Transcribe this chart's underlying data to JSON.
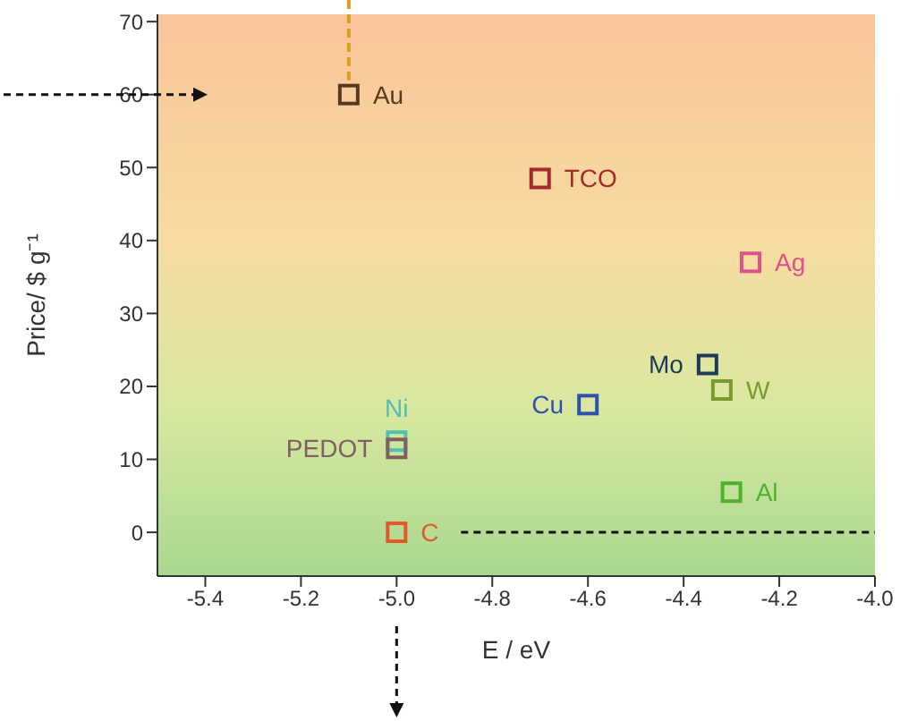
{
  "chart_data": {
    "type": "scatter",
    "xlabel": "E / eV",
    "ylabel": "Price/ $ g⁻¹",
    "xlim": [
      -5.5,
      -4.0
    ],
    "xticks": [
      -5.4,
      -5.2,
      {
        "value": -5.0,
        "label": "-5.0"
      },
      -4.8,
      -4.6,
      -4.4,
      -4.2,
      {
        "value": -4.0,
        "label": "-4.0"
      }
    ],
    "ylim": [
      -6,
      71
    ],
    "yticks": [
      0,
      10,
      20,
      30,
      40,
      50,
      60,
      70
    ],
    "marker": "square",
    "series": [
      {
        "name": "Au",
        "color": "#5a3a1e",
        "x": [
          -5.1
        ],
        "values": [
          60
        ]
      },
      {
        "name": "TCO",
        "color": "#a52a2a",
        "x": [
          -4.7
        ],
        "values": [
          48.5
        ]
      },
      {
        "name": "Ag",
        "color": "#e0508c",
        "x": [
          -4.26
        ],
        "values": [
          37
        ]
      },
      {
        "name": "Mo",
        "color": "#1e3a5a",
        "x": [
          -4.35
        ],
        "values": [
          23
        ]
      },
      {
        "name": "W",
        "color": "#7a9a30",
        "x": [
          -4.32
        ],
        "values": [
          19.5
        ]
      },
      {
        "name": "Cu",
        "color": "#3050b0",
        "x": [
          -4.6
        ],
        "values": [
          17.5
        ]
      },
      {
        "name": "Al",
        "color": "#50b030",
        "x": [
          -4.3
        ],
        "values": [
          5.5
        ]
      },
      {
        "name": "Ni",
        "color": "#50c0b0",
        "x": [
          -5.0
        ],
        "values": [
          12.5
        ]
      },
      {
        "name": "PEDOT",
        "color": "#806060",
        "x": [
          -5.0
        ],
        "values": [
          11.5
        ]
      },
      {
        "name": "C",
        "color": "#e05a28",
        "x": [
          -5.0
        ],
        "values": [
          0
        ]
      }
    ]
  }
}
